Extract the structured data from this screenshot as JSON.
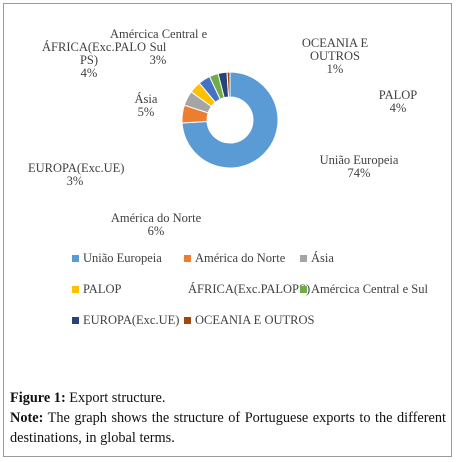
{
  "chart_data": {
    "type": "pie",
    "categories": [
      "União Europeia",
      "América do Norte",
      "Ásia",
      "PALOP",
      "ÁFRICA(Exc.PALOPS)",
      "América Central e Sul",
      "EUROPA(Exc.UE)",
      "OCEANIA E OUTROS"
    ],
    "values": [
      74,
      6,
      5,
      4,
      4,
      3,
      3,
      1
    ],
    "colors": [
      "#5B9BD5",
      "#ED7D31",
      "#A5A5A5",
      "#FFC000",
      "#4472C4",
      "#70AD47",
      "#264478",
      "#9E480E"
    ],
    "style": "doughnut",
    "data_labels": [
      {
        "name": "União Europeia",
        "value": "74%"
      },
      {
        "name": "América do Norte",
        "value": "6%"
      },
      {
        "name": "Ásia",
        "value": "5%"
      },
      {
        "name": "PALOP",
        "value": "4%"
      },
      {
        "name_lines": [
          "ÁFRICA(Exc.PALO",
          "PS)"
        ],
        "value": "4%"
      },
      {
        "name_lines": [
          "Amércica Central e",
          "Sul"
        ],
        "value": "3%"
      },
      {
        "name": "EUROPA(Exc.UE)",
        "value": "3%"
      },
      {
        "name_lines": [
          "OCEANIA E",
          "OUTROS"
        ],
        "value": "1%"
      }
    ],
    "legend": {
      "placement": "bottom",
      "rows": [
        [
          "União Europeia",
          "América do Norte",
          "Ásia"
        ],
        [
          "PALOP",
          "ÁFRICA(Exc.PALOPS)",
          "Amércica Central e Sul"
        ],
        [
          "EUROPA(Exc.UE)",
          "OCEANIA E OUTROS"
        ]
      ]
    }
  },
  "caption": {
    "figure_label": "Figure 1:",
    "figure_text": " Export structure.",
    "note_label": "Note:",
    "note_text": " The graph shows the structure of Portuguese exports to the different destinations, in global terms."
  }
}
